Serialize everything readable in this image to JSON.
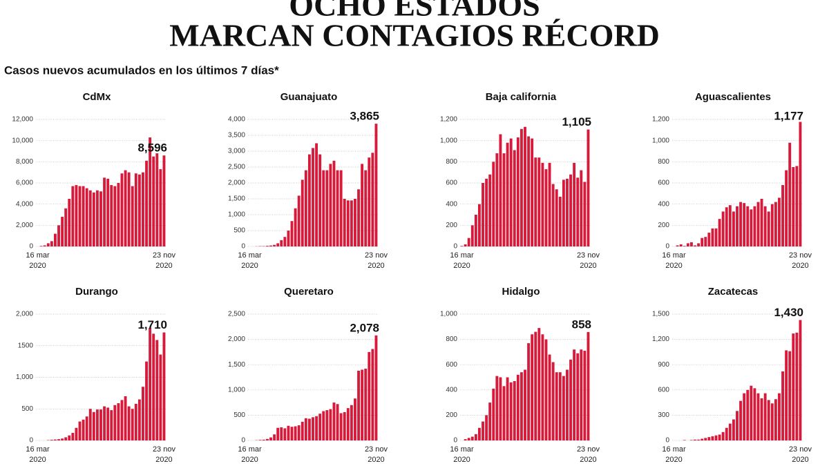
{
  "title": [
    "OCHO ESTADOS",
    "MARCAN CONTAGIOS RÉCORD"
  ],
  "subtitle": "Casos nuevos acumulados en los últimos 7 días*",
  "chart_data": [
    {
      "type": "bar",
      "title": "CdMx",
      "color": "#d7193a",
      "categories": [
        "16 mar 2020",
        null,
        null,
        null,
        null,
        null,
        null,
        null,
        null,
        null,
        null,
        null,
        null,
        null,
        null,
        null,
        null,
        null,
        null,
        null,
        null,
        null,
        null,
        null,
        null,
        null,
        null,
        null,
        null,
        null,
        null,
        null,
        null,
        null,
        null,
        null,
        "23 nov 2020"
      ],
      "values": [
        0,
        50,
        100,
        300,
        500,
        1200,
        2000,
        2800,
        3600,
        4500,
        5700,
        5800,
        5700,
        5700,
        5500,
        5300,
        5100,
        5300,
        5200,
        6500,
        6400,
        5800,
        5700,
        6000,
        6900,
        7200,
        7000,
        5700,
        6900,
        6800,
        7000,
        8100,
        10300,
        8500,
        8800,
        7300,
        8596
      ],
      "value_labels": [
        null,
        null,
        null,
        null,
        null,
        null,
        null,
        null,
        null,
        null,
        null,
        null,
        null,
        null,
        null,
        null,
        null,
        null,
        null,
        null,
        null,
        null,
        null,
        null,
        null,
        null,
        null,
        null,
        null,
        null,
        null,
        null,
        null,
        null,
        null,
        null,
        "8,596"
      ],
      "ylim": [
        0,
        12000
      ],
      "yticks": [
        0,
        {
          "value": 2000,
          "label": "2,000"
        },
        {
          "value": 4000,
          "label": "4,000"
        },
        {
          "value": 6000,
          "label": "6,000"
        },
        {
          "value": 8000,
          "label": "8,000"
        },
        {
          "value": 10000,
          "label": "10,000"
        },
        {
          "value": 12000,
          "label": "12,000"
        }
      ],
      "grid": true
    },
    {
      "type": "bar",
      "title": "Guanajuato",
      "color": "#d7193a",
      "categories": [
        "16 mar 2020",
        null,
        null,
        null,
        null,
        null,
        null,
        null,
        null,
        null,
        null,
        null,
        null,
        null,
        null,
        null,
        null,
        null,
        null,
        null,
        null,
        null,
        null,
        null,
        null,
        null,
        null,
        null,
        null,
        null,
        null,
        null,
        null,
        null,
        null,
        null,
        "23 nov 2020"
      ],
      "values": [
        0,
        0,
        5,
        10,
        10,
        20,
        30,
        50,
        100,
        200,
        300,
        500,
        800,
        1200,
        1600,
        2100,
        2400,
        2900,
        3100,
        3250,
        2900,
        2400,
        2400,
        2600,
        2700,
        2400,
        2400,
        1500,
        1450,
        1450,
        1500,
        1800,
        2600,
        2400,
        2800,
        2950,
        3865
      ],
      "value_labels": [
        null,
        null,
        null,
        null,
        null,
        null,
        null,
        null,
        null,
        null,
        null,
        null,
        null,
        null,
        null,
        null,
        null,
        null,
        null,
        null,
        null,
        null,
        null,
        null,
        null,
        null,
        null,
        null,
        null,
        null,
        null,
        null,
        null,
        null,
        null,
        null,
        "3,865"
      ],
      "ylim": [
        0,
        4000
      ],
      "yticks": [
        0,
        500,
        {
          "value": 1000,
          "label": "1,000"
        },
        {
          "value": 1500,
          "label": "1,500"
        },
        {
          "value": 2000,
          "label": "2,000"
        },
        {
          "value": 2500,
          "label": "2,500"
        },
        {
          "value": 3000,
          "label": "3,000"
        },
        {
          "value": 3500,
          "label": "3,500"
        },
        {
          "value": 4000,
          "label": "4,000"
        }
      ],
      "grid": true
    },
    {
      "type": "bar",
      "title": "Baja california",
      "color": "#d7193a",
      "categories": [
        "16 mar 2020",
        null,
        null,
        null,
        null,
        null,
        null,
        null,
        null,
        null,
        null,
        null,
        null,
        null,
        null,
        null,
        null,
        null,
        null,
        null,
        null,
        null,
        null,
        null,
        null,
        null,
        null,
        null,
        null,
        null,
        null,
        null,
        null,
        null,
        null,
        null,
        "23 nov 2020"
      ],
      "values": [
        5,
        20,
        80,
        200,
        300,
        400,
        600,
        640,
        680,
        800,
        880,
        1060,
        880,
        980,
        1020,
        910,
        1030,
        1110,
        1130,
        1040,
        1020,
        840,
        840,
        790,
        730,
        790,
        590,
        540,
        470,
        630,
        640,
        680,
        790,
        650,
        720,
        610,
        1105
      ],
      "value_labels": [
        null,
        null,
        null,
        null,
        null,
        null,
        null,
        null,
        null,
        null,
        null,
        null,
        null,
        null,
        null,
        null,
        null,
        null,
        null,
        null,
        null,
        null,
        null,
        null,
        null,
        null,
        null,
        null,
        null,
        null,
        null,
        null,
        null,
        null,
        null,
        null,
        "1,105"
      ],
      "ylim": [
        0,
        1200
      ],
      "yticks": [
        0,
        200,
        400,
        600,
        800,
        {
          "value": 1000,
          "label": "1,000"
        },
        {
          "value": 1200,
          "label": "1,200"
        }
      ],
      "grid": true
    },
    {
      "type": "bar",
      "title": "Aguascalientes",
      "color": "#d7193a",
      "categories": [
        "16 mar 2020",
        null,
        null,
        null,
        null,
        null,
        null,
        null,
        null,
        null,
        null,
        null,
        null,
        null,
        null,
        null,
        null,
        null,
        null,
        null,
        null,
        null,
        null,
        null,
        null,
        null,
        null,
        null,
        null,
        null,
        null,
        null,
        null,
        null,
        null,
        null,
        "23 nov 2020"
      ],
      "values": [
        0,
        10,
        20,
        5,
        30,
        40,
        10,
        30,
        80,
        90,
        130,
        170,
        170,
        260,
        330,
        370,
        390,
        330,
        380,
        420,
        410,
        380,
        350,
        380,
        420,
        450,
        380,
        330,
        400,
        420,
        460,
        580,
        720,
        980,
        750,
        760,
        1177
      ],
      "value_labels": [
        null,
        null,
        null,
        null,
        null,
        null,
        null,
        null,
        null,
        null,
        null,
        null,
        null,
        null,
        null,
        null,
        null,
        null,
        null,
        null,
        null,
        null,
        null,
        null,
        null,
        null,
        null,
        null,
        null,
        null,
        null,
        null,
        null,
        null,
        null,
        null,
        "1,177"
      ],
      "ylim": [
        0,
        1200
      ],
      "yticks": [
        0,
        200,
        400,
        600,
        800,
        {
          "value": 1000,
          "label": "1,000"
        },
        {
          "value": 1200,
          "label": "1,200"
        }
      ],
      "grid": true
    },
    {
      "type": "bar",
      "title": "Durango",
      "color": "#d7193a",
      "categories": [
        "16 mar 2020",
        null,
        null,
        null,
        null,
        null,
        null,
        null,
        null,
        null,
        null,
        null,
        null,
        null,
        null,
        null,
        null,
        null,
        null,
        null,
        null,
        null,
        null,
        null,
        null,
        null,
        null,
        null,
        null,
        null,
        null,
        null,
        null,
        null,
        null,
        null,
        "23 nov 2020"
      ],
      "values": [
        0,
        0,
        0,
        5,
        10,
        15,
        20,
        30,
        50,
        80,
        120,
        200,
        300,
        330,
        380,
        500,
        450,
        490,
        490,
        540,
        520,
        480,
        560,
        590,
        640,
        700,
        540,
        500,
        580,
        650,
        850,
        1250,
        1780,
        1690,
        1590,
        1360,
        1710
      ],
      "value_labels": [
        null,
        null,
        null,
        null,
        null,
        null,
        null,
        null,
        null,
        null,
        null,
        null,
        null,
        null,
        null,
        null,
        null,
        null,
        null,
        null,
        null,
        null,
        null,
        null,
        null,
        null,
        null,
        null,
        null,
        null,
        null,
        null,
        null,
        null,
        null,
        null,
        "1,710"
      ],
      "ylim": [
        0,
        2000
      ],
      "yticks": [
        0,
        500,
        {
          "value": 1000,
          "label": "1,000"
        },
        1500,
        {
          "value": 2000,
          "label": "2,000"
        }
      ],
      "grid": true
    },
    {
      "type": "bar",
      "title": "Queretaro",
      "color": "#d7193a",
      "categories": [
        "16 mar 2020",
        null,
        null,
        null,
        null,
        null,
        null,
        null,
        null,
        null,
        null,
        null,
        null,
        null,
        null,
        null,
        null,
        null,
        null,
        null,
        null,
        null,
        null,
        null,
        null,
        null,
        null,
        null,
        null,
        null,
        null,
        null,
        null,
        null,
        null,
        null,
        "23 nov 2020"
      ],
      "values": [
        0,
        0,
        5,
        10,
        15,
        30,
        60,
        120,
        250,
        260,
        240,
        290,
        270,
        280,
        300,
        370,
        440,
        430,
        460,
        480,
        530,
        580,
        600,
        620,
        750,
        720,
        540,
        560,
        640,
        700,
        830,
        1380,
        1400,
        1420,
        1750,
        1810,
        2078
      ],
      "value_labels": [
        null,
        null,
        null,
        null,
        null,
        null,
        null,
        null,
        null,
        null,
        null,
        null,
        null,
        null,
        null,
        null,
        null,
        null,
        null,
        null,
        null,
        null,
        null,
        null,
        null,
        null,
        null,
        null,
        null,
        null,
        null,
        null,
        null,
        null,
        null,
        null,
        "2,078"
      ],
      "ylim": [
        0,
        2500
      ],
      "yticks": [
        0,
        500,
        {
          "value": 1000,
          "label": "1,000"
        },
        {
          "value": 1500,
          "label": "1,500"
        },
        {
          "value": 2000,
          "label": "2,000"
        },
        {
          "value": 2500,
          "label": "2,500"
        }
      ],
      "grid": true
    },
    {
      "type": "bar",
      "title": "Hidalgo",
      "color": "#d7193a",
      "categories": [
        "16 mar 2020",
        null,
        null,
        null,
        null,
        null,
        null,
        null,
        null,
        null,
        null,
        null,
        null,
        null,
        null,
        null,
        null,
        null,
        null,
        null,
        null,
        null,
        null,
        null,
        null,
        null,
        null,
        null,
        null,
        null,
        null,
        null,
        null,
        null,
        null,
        null,
        "23 nov 2020"
      ],
      "values": [
        0,
        10,
        20,
        30,
        50,
        100,
        150,
        200,
        300,
        410,
        510,
        500,
        430,
        500,
        460,
        470,
        520,
        540,
        560,
        770,
        840,
        860,
        890,
        840,
        800,
        680,
        620,
        540,
        540,
        510,
        560,
        640,
        720,
        690,
        720,
        710,
        858
      ],
      "value_labels": [
        null,
        null,
        null,
        null,
        null,
        null,
        null,
        null,
        null,
        null,
        null,
        null,
        null,
        null,
        null,
        null,
        null,
        null,
        null,
        null,
        null,
        null,
        null,
        null,
        null,
        null,
        null,
        null,
        null,
        null,
        null,
        null,
        null,
        null,
        null,
        null,
        "858"
      ],
      "ylim": [
        0,
        1000
      ],
      "yticks": [
        0,
        200,
        400,
        600,
        800,
        {
          "value": 1000,
          "label": "1,000"
        }
      ],
      "grid": true
    },
    {
      "type": "bar",
      "title": "Zacatecas",
      "color": "#d7193a",
      "categories": [
        "16 mar 2020",
        null,
        null,
        null,
        null,
        null,
        null,
        null,
        null,
        null,
        null,
        null,
        null,
        null,
        null,
        null,
        null,
        null,
        null,
        null,
        null,
        null,
        null,
        null,
        null,
        null,
        null,
        null,
        null,
        null,
        null,
        null,
        null,
        null,
        null,
        null,
        "23 nov 2020"
      ],
      "values": [
        0,
        0,
        0,
        5,
        0,
        5,
        10,
        10,
        20,
        30,
        40,
        50,
        60,
        70,
        100,
        150,
        200,
        250,
        350,
        470,
        560,
        600,
        650,
        620,
        560,
        500,
        560,
        480,
        440,
        490,
        560,
        820,
        1070,
        1060,
        1270,
        1280,
        1430
      ],
      "value_labels": [
        null,
        null,
        null,
        null,
        null,
        null,
        null,
        null,
        null,
        null,
        null,
        null,
        null,
        null,
        null,
        null,
        null,
        null,
        null,
        null,
        null,
        null,
        null,
        null,
        null,
        null,
        null,
        null,
        null,
        null,
        null,
        null,
        null,
        null,
        null,
        null,
        "1,430"
      ],
      "ylim": [
        0,
        1500
      ],
      "yticks": [
        0,
        300,
        600,
        900,
        {
          "value": 1200,
          "label": "1,200"
        },
        {
          "value": 1500,
          "label": "1,500"
        }
      ],
      "grid": true
    }
  ]
}
